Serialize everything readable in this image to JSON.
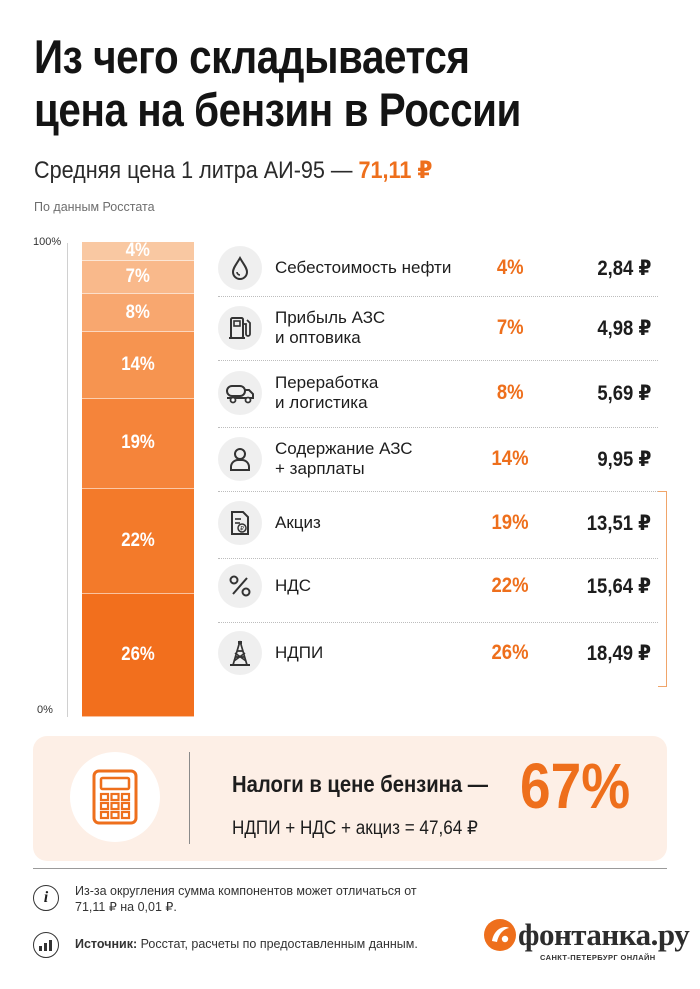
{
  "title_line1": "Из чего складывается",
  "title_line2": "цена на бензин в России",
  "subtitle_text": "Средняя цена 1 литра АИ-95 — ",
  "subtitle_price": "71,11 ₽",
  "source_note": "По данным Росстата",
  "colors": {
    "accent": "#ee6f1c",
    "segments": [
      "#f9c8a2",
      "#f9b98b",
      "#f8a76f",
      "#f69450",
      "#f5843a",
      "#f37a2a",
      "#f26f1d"
    ]
  },
  "chart_data": {
    "type": "bar",
    "stacked": true,
    "y_axis_labels": [
      "100%",
      "0%"
    ],
    "ylim": [
      0,
      100
    ],
    "categories": [
      "Себестоимость нефти",
      "Прибыль АЗС и оптовика",
      "Переработка и логистика",
      "Содержание АЗС + зарплаты",
      "Акциз",
      "НДС",
      "НДПИ"
    ],
    "values": [
      4,
      7,
      8,
      14,
      19,
      22,
      26
    ],
    "value_labels": [
      "4%",
      "7%",
      "8%",
      "14%",
      "19%",
      "22%",
      "26%"
    ],
    "rub_values": [
      2.84,
      4.98,
      5.69,
      9.95,
      13.51,
      15.64,
      18.49
    ]
  },
  "rows": [
    {
      "icon": "oil-drop-icon",
      "label_l1": "Себестоимость нефти",
      "label_l2": "",
      "pct": "4%",
      "value": "2,84 ₽"
    },
    {
      "icon": "fuel-pump-icon",
      "label_l1": "Прибыль АЗС",
      "label_l2": "и оптовика",
      "pct": "7%",
      "value": "4,98 ₽"
    },
    {
      "icon": "tanker-truck-icon",
      "label_l1": "Переработка",
      "label_l2": "и логистика",
      "pct": "8%",
      "value": "5,69 ₽"
    },
    {
      "icon": "person-icon",
      "label_l1": "Содержание АЗС",
      "label_l2": "+ зарплаты",
      "pct": "14%",
      "value": "9,95 ₽"
    },
    {
      "icon": "document-ruble-icon",
      "label_l1": "Акциз",
      "label_l2": "",
      "pct": "19%",
      "value": "13,51 ₽"
    },
    {
      "icon": "percent-icon",
      "label_l1": "НДС",
      "label_l2": "",
      "pct": "22%",
      "value": "15,64 ₽"
    },
    {
      "icon": "oil-derrick-icon",
      "label_l1": "НДПИ",
      "label_l2": "",
      "pct": "26%",
      "value": "18,49 ₽"
    }
  ],
  "tax_summary": {
    "icon": "calculator-icon",
    "title": "Налоги в цене бензина —",
    "pct": "67%",
    "formula": "НДПИ + НДС + акциз = 47,64 ₽"
  },
  "footer": {
    "info_icon": "info-icon",
    "info_glyph": "i",
    "rounding_note": "Из-за округления сумма компонентов может отличаться от 71,11 ₽ на 0,01 ₽.",
    "source_icon": "chart-icon",
    "source_label": "Источник:",
    "source_text": " Росстат, расчеты по предоставленным данным.",
    "logo_text": "фонтанка.ру",
    "logo_tagline": "САНКТ-ПЕТЕРБУРГ ОНЛАЙН"
  }
}
